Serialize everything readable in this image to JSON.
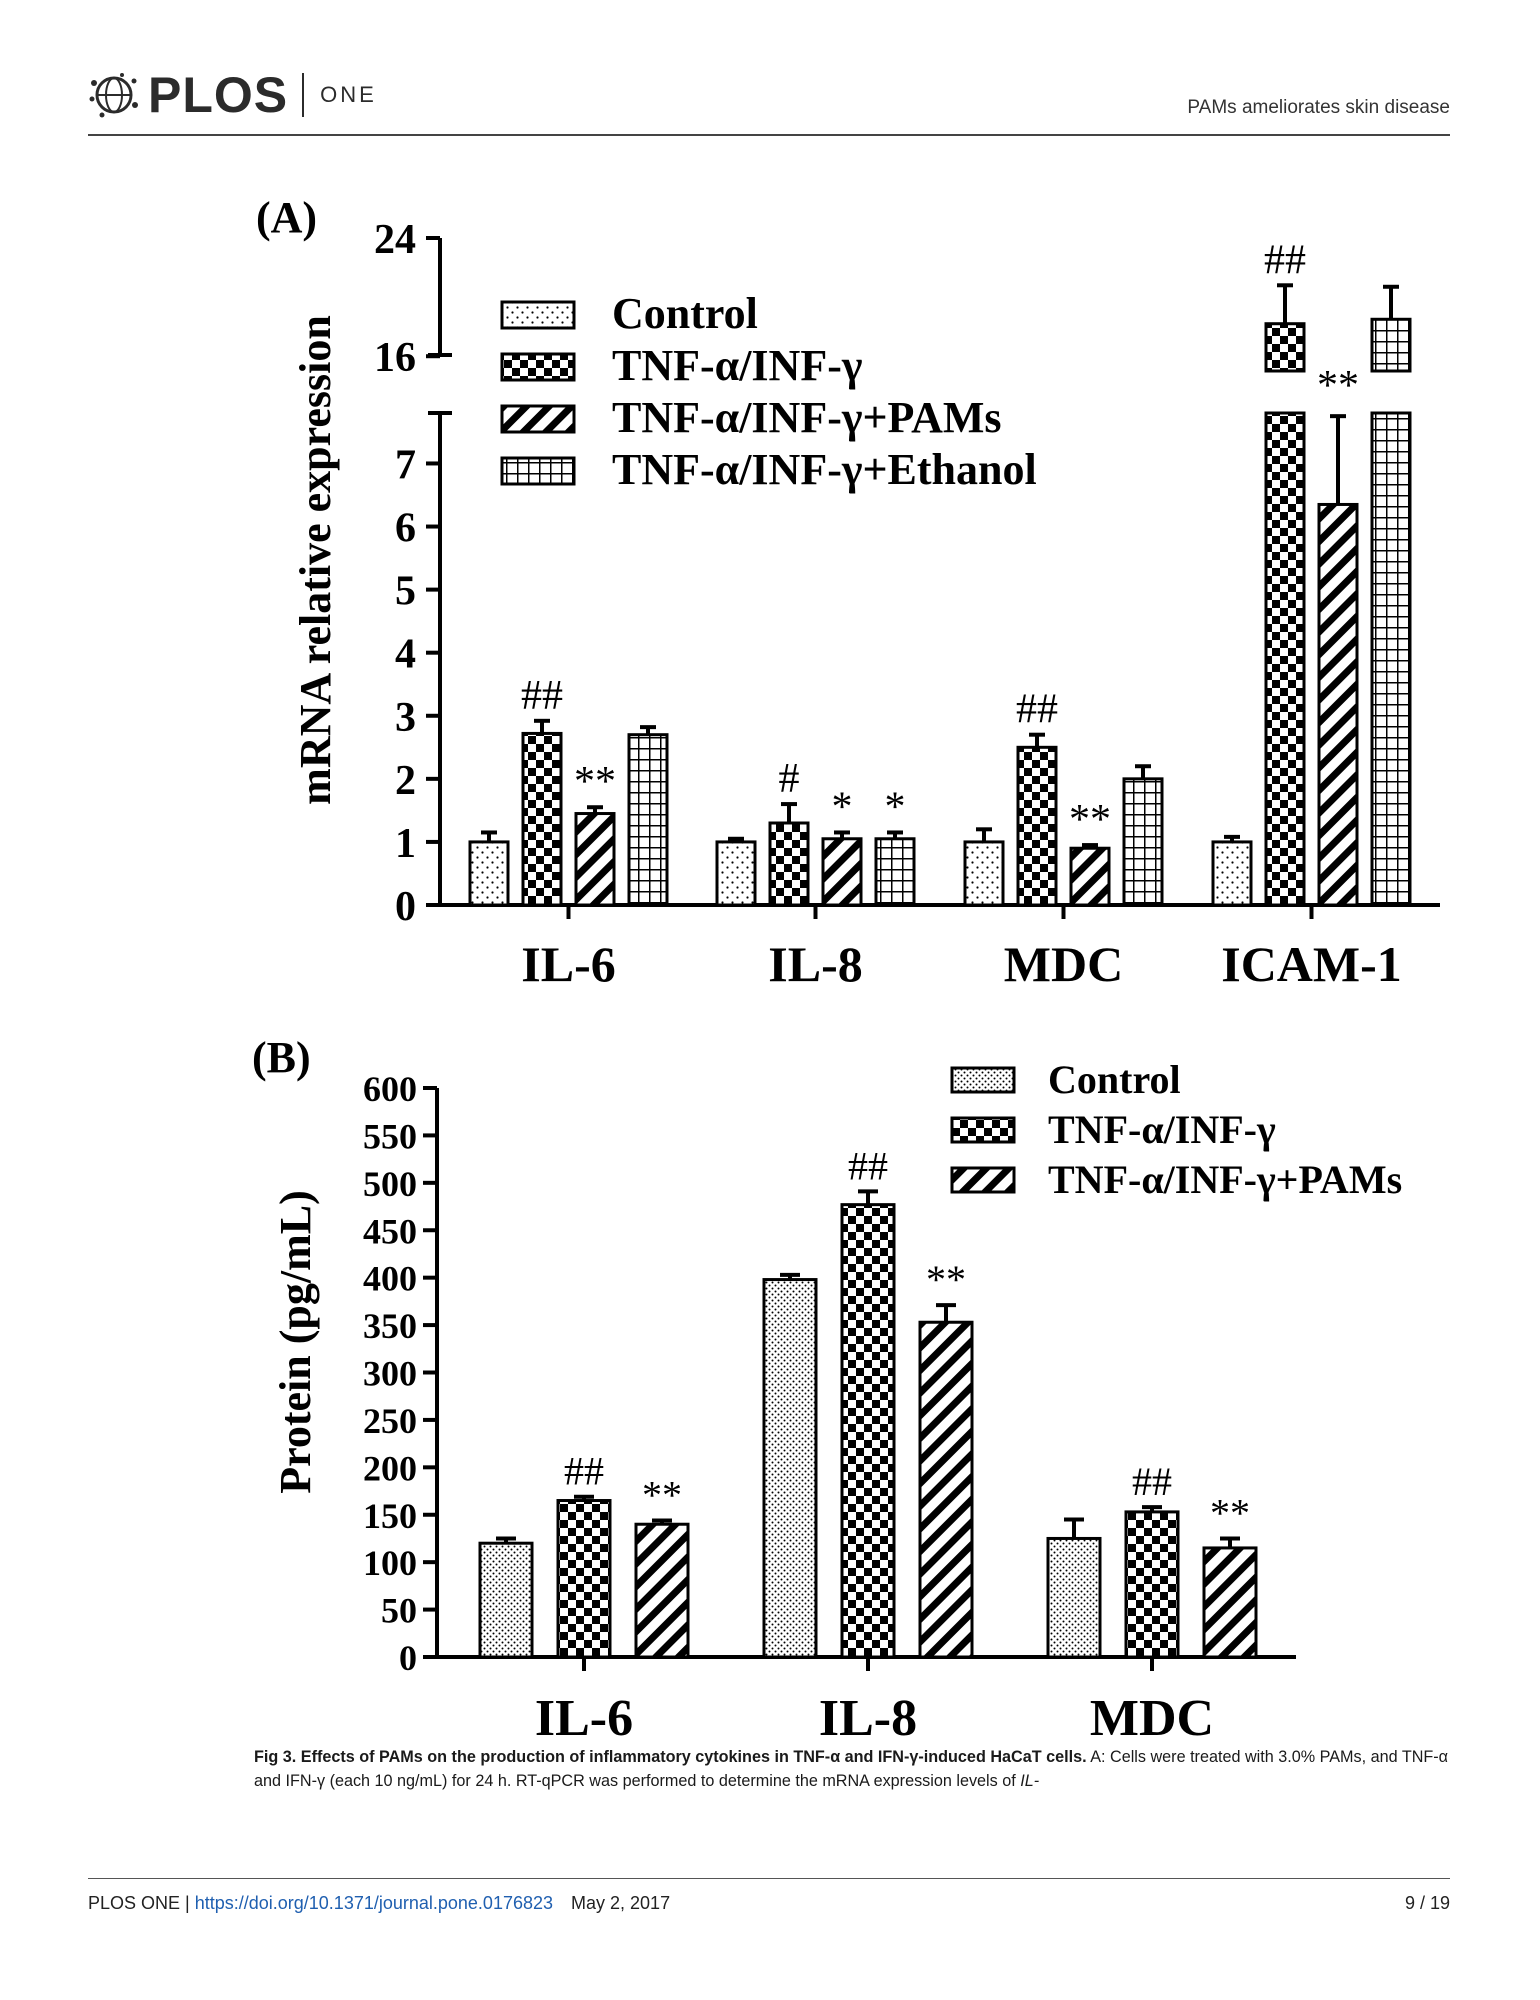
{
  "header": {
    "journal_word": "PLOS",
    "journal_suffix": "ONE",
    "running_title": "PAMs ameliorates skin disease"
  },
  "chart_data": [
    {
      "type": "bar",
      "panel_label": "(A)",
      "ylabel": "mRNA relative expression",
      "xlabel": "",
      "categories": [
        "IL-6",
        "IL-8",
        "MDC",
        "ICAM-1"
      ],
      "broken_axis": {
        "lower_range": [
          0,
          7.8
        ],
        "upper_range": [
          15,
          24
        ],
        "lower_ticks": [
          0,
          1,
          2,
          3,
          4,
          5,
          6,
          7
        ],
        "upper_ticks": [
          16,
          24
        ]
      },
      "legend_position": "top-left",
      "series": [
        {
          "name": "Control",
          "pattern": "dots",
          "values": [
            1.0,
            1.0,
            1.0,
            1.0
          ],
          "errors": [
            0.15,
            0.05,
            0.2,
            0.08
          ]
        },
        {
          "name": "TNF-α/INF-γ",
          "pattern": "checker",
          "values": [
            2.72,
            1.3,
            2.5,
            18.2
          ],
          "errors": [
            0.2,
            0.3,
            0.2,
            2.6
          ]
        },
        {
          "name": "TNF-α/INF-γ+PAMs",
          "pattern": "diagonal",
          "values": [
            1.45,
            1.05,
            0.9,
            6.35
          ],
          "errors": [
            0.1,
            0.1,
            0.05,
            1.4
          ]
        },
        {
          "name": "TNF-α/INF-γ+Ethanol",
          "pattern": "grid",
          "values": [
            2.7,
            1.05,
            2.0,
            18.5
          ],
          "errors": [
            0.12,
            0.1,
            0.2,
            2.2
          ]
        }
      ],
      "annotations": [
        {
          "category": "IL-6",
          "series": 1,
          "text": "##"
        },
        {
          "category": "IL-6",
          "series": 2,
          "text": "**"
        },
        {
          "category": "IL-8",
          "series": 1,
          "text": "#"
        },
        {
          "category": "IL-8",
          "series": 2,
          "text": "*"
        },
        {
          "category": "IL-8",
          "series": 3,
          "text": "*"
        },
        {
          "category": "MDC",
          "series": 1,
          "text": "##"
        },
        {
          "category": "MDC",
          "series": 2,
          "text": "**"
        },
        {
          "category": "ICAM-1",
          "series": 1,
          "text": "##"
        },
        {
          "category": "ICAM-1",
          "series": 2,
          "text": "**"
        }
      ]
    },
    {
      "type": "bar",
      "panel_label": "(B)",
      "ylabel": "Protein (pg/mL)",
      "xlabel": "",
      "categories": [
        "IL-6",
        "IL-8",
        "MDC"
      ],
      "ylim": [
        0,
        600
      ],
      "yticks": [
        0,
        50,
        100,
        150,
        200,
        250,
        300,
        350,
        400,
        450,
        500,
        550,
        600
      ],
      "legend_position": "top-right",
      "series": [
        {
          "name": "Control",
          "pattern": "dense-dots",
          "values": [
            120,
            398,
            125
          ],
          "errors": [
            5,
            5,
            20
          ]
        },
        {
          "name": "TNF-α/INF-γ",
          "pattern": "checker",
          "values": [
            165,
            477,
            153
          ],
          "errors": [
            4,
            14,
            5
          ]
        },
        {
          "name": "TNF-α/INF-γ+PAMs",
          "pattern": "diagonal",
          "values": [
            140,
            353,
            115
          ],
          "errors": [
            4,
            18,
            10
          ]
        }
      ],
      "annotations": [
        {
          "category": "IL-6",
          "series": 1,
          "text": "##"
        },
        {
          "category": "IL-6",
          "series": 2,
          "text": "**"
        },
        {
          "category": "IL-8",
          "series": 1,
          "text": "##"
        },
        {
          "category": "IL-8",
          "series": 2,
          "text": "**"
        },
        {
          "category": "MDC",
          "series": 1,
          "text": "##"
        },
        {
          "category": "MDC",
          "series": 2,
          "text": "**"
        }
      ]
    }
  ],
  "caption": {
    "title": "Fig 3. Effects of PAMs on the production of inflammatory cytokines in TNF-α and IFN-γ-induced HaCaT cells.",
    "body": " A: Cells were treated with 3.0% PAMs, and TNF-α and IFN-γ (each 10 ng/mL) for 24 h. RT-qPCR was performed to determine the mRNA expression levels of ",
    "italic_tail": "IL-"
  },
  "footer": {
    "journal": "PLOS ONE | ",
    "doi": "https://doi.org/10.1371/journal.pone.0176823",
    "date": "May 2, 2017",
    "page": "9 / 19"
  }
}
